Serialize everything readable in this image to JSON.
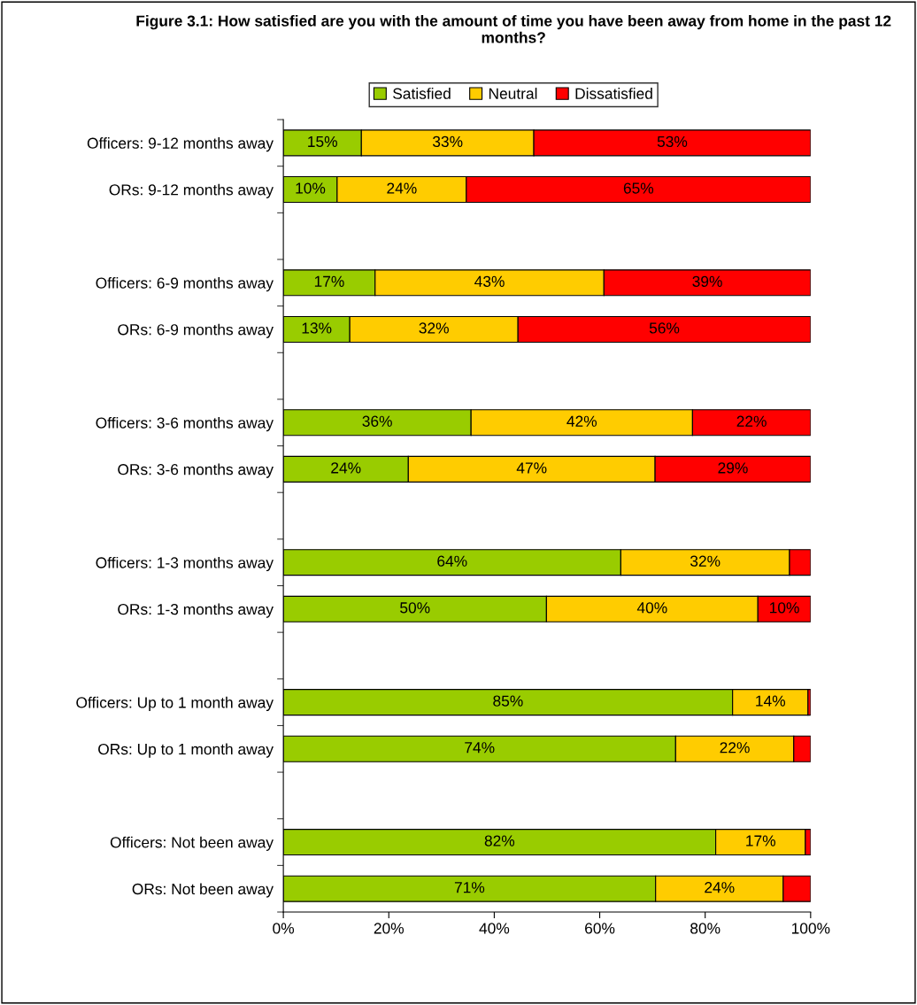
{
  "chart_data": {
    "type": "bar",
    "orientation": "horizontal",
    "stacked": true,
    "title": "Figure 3.1: How satisfied are you with the amount of time you have been away from home in the past 12 months?",
    "categories": [
      "Officers: 9-12 months away",
      "ORs: 9-12 months away",
      null,
      "Officers: 6-9 months away",
      "ORs: 6-9 months away",
      null,
      "Officers: 3-6 months away",
      "ORs: 3-6 months away",
      null,
      "Officers: 1-3 months away",
      "ORs: 1-3 months away",
      null,
      "Officers: Up to 1 month away",
      "ORs: Up to 1 month away",
      null,
      "Officers: Not been away",
      "ORs: Not been away"
    ],
    "series": [
      {
        "name": "Satisfied",
        "color": "#99cc00",
        "values": [
          14.8,
          10.2,
          null,
          17.4,
          12.6,
          null,
          35.6,
          23.7,
          null,
          64.0,
          49.9,
          null,
          85.2,
          74.4,
          null,
          82.0,
          70.6
        ],
        "value_labels": [
          "15%",
          "10%",
          null,
          "17%",
          "13%",
          null,
          "36%",
          "24%",
          null,
          "64%",
          "50%",
          null,
          "85%",
          "74%",
          null,
          "82%",
          "71%"
        ]
      },
      {
        "name": "Neutral",
        "color": "#ffcc00",
        "values": [
          32.7,
          24.5,
          null,
          43.4,
          31.9,
          null,
          42.0,
          46.8,
          null,
          32.0,
          40.1,
          null,
          14.3,
          22.4,
          null,
          17.0,
          24.2
        ],
        "value_labels": [
          "33%",
          "24%",
          null,
          "43%",
          "32%",
          null,
          "42%",
          "47%",
          null,
          "32%",
          "40%",
          null,
          "14%",
          "22%",
          null,
          "17%",
          "24%"
        ]
      },
      {
        "name": "Dissatisfied",
        "color": "#ff0000",
        "values": [
          52.5,
          65.3,
          null,
          39.2,
          55.5,
          null,
          22.4,
          29.5,
          null,
          4.0,
          10.0,
          null,
          0.5,
          3.2,
          null,
          1.0,
          5.2
        ],
        "value_labels": [
          "53%",
          "65%",
          null,
          "39%",
          "56%",
          null,
          "22%",
          "29%",
          null,
          null,
          "10%",
          null,
          null,
          null,
          null,
          null,
          null
        ]
      }
    ],
    "xlim": [
      0,
      100
    ],
    "xticks": [
      {
        "value": 0,
        "label": "0%"
      },
      {
        "value": 20,
        "label": "20%"
      },
      {
        "value": 40,
        "label": "40%"
      },
      {
        "value": 60,
        "label": "60%"
      },
      {
        "value": 80,
        "label": "80%"
      },
      {
        "value": 100,
        "label": "100%"
      }
    ],
    "legend": "top",
    "grid": false
  }
}
